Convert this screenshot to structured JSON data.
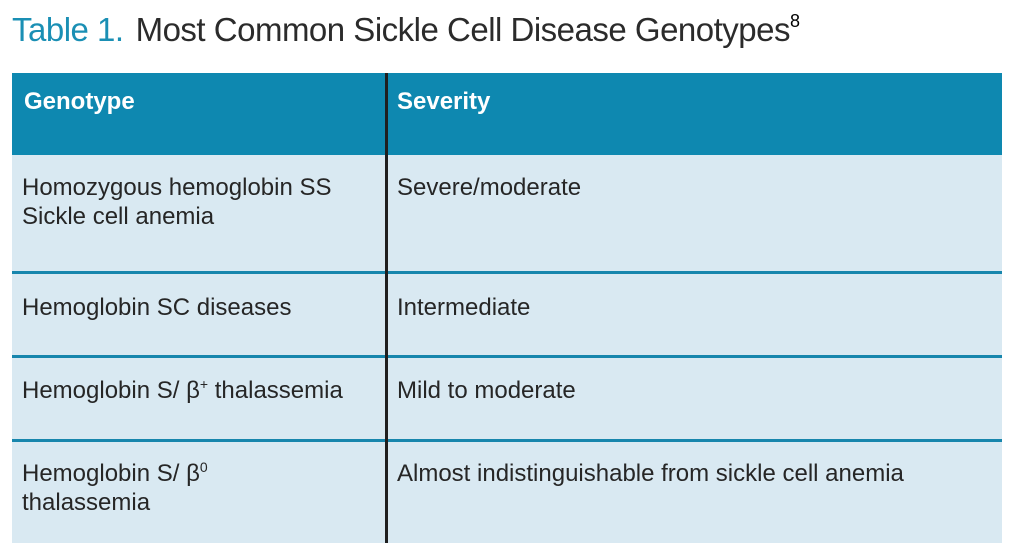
{
  "title": {
    "label": "Table 1.",
    "text": "Most Common Sickle Cell Disease Genotypes",
    "reference": "8"
  },
  "table": {
    "headers": [
      "Genotype",
      "Severity"
    ],
    "rows": [
      {
        "genotype_line1": "Homozygous hemoglobin SS",
        "genotype_line2": "Sickle cell anemia",
        "severity": "Severe/moderate"
      },
      {
        "genotype_line1": "Hemoglobin SC diseases",
        "severity": "Intermediate"
      },
      {
        "genotype_prefix": "Hemoglobin S/ β",
        "genotype_sup": "+",
        "genotype_suffix": " thalassemia",
        "severity": "Mild to moderate"
      },
      {
        "genotype_prefix": "Hemoglobin S/ β",
        "genotype_sup": "0",
        "genotype_line2": "thalassemia",
        "severity": "Almost indistinguishable from sickle cell anemia"
      }
    ]
  },
  "colors": {
    "header_bg": "#0e88b0",
    "row_bg": "#d9e9f2",
    "title_label": "#1a8fb4",
    "divider": "#1786ad",
    "text": "#262626"
  }
}
